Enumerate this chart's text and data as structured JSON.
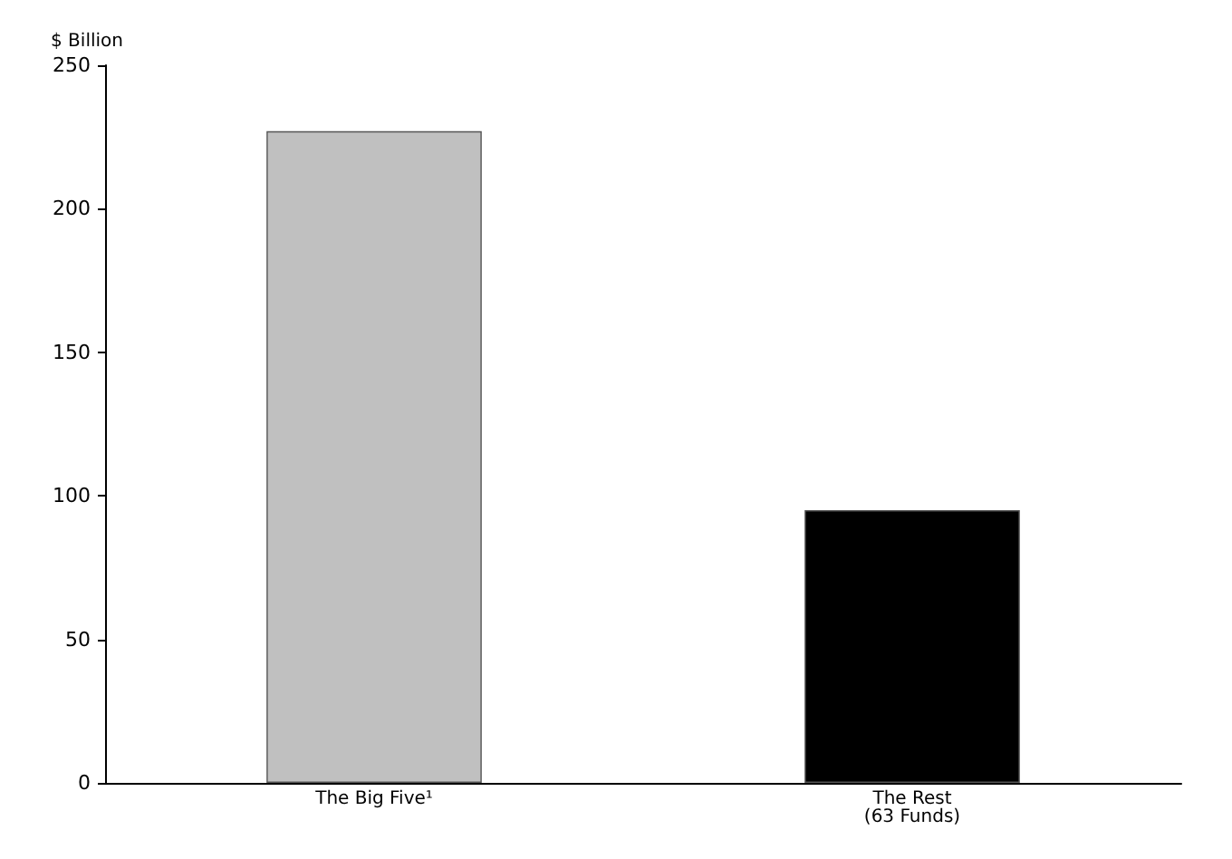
{
  "chart_data": {
    "type": "bar",
    "ylabel": "$ Billion",
    "categories": [
      "The Big Five¹",
      "The Rest\n(63 Funds)"
    ],
    "values": [
      227,
      95
    ],
    "colors": [
      "#c0c0c0",
      "#000000"
    ],
    "ylim": [
      0,
      250
    ],
    "yticks": [
      0,
      50,
      100,
      150,
      200,
      250
    ],
    "grid": false
  }
}
